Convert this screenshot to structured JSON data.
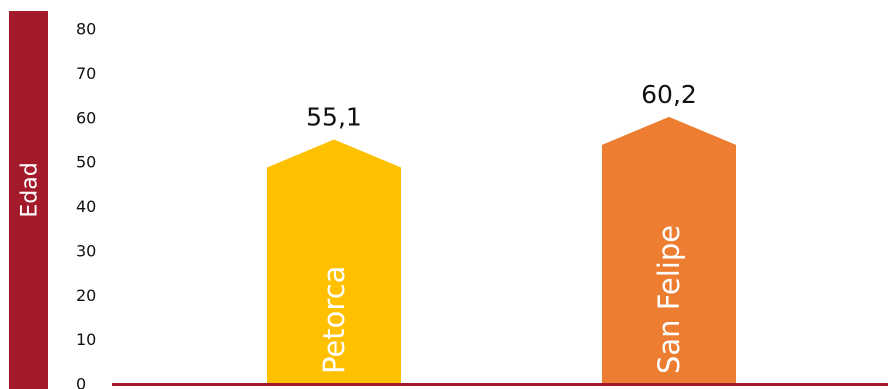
{
  "chart_data": {
    "type": "bar",
    "categories": [
      "Petorca",
      "San Felipe"
    ],
    "values": [
      55.1,
      60.2
    ],
    "value_labels": [
      "55,1",
      "60,2"
    ],
    "ylabel": "Edad",
    "ylim": [
      0,
      80
    ],
    "yticks": [
      "0",
      "10",
      "20",
      "30",
      "40",
      "50",
      "60",
      "70",
      "80"
    ],
    "grid": false,
    "legend": "none",
    "colors": {
      "bars": [
        "#FFC000",
        "#ED7D31"
      ],
      "ylabel_band": "#A31A2A",
      "axis": "#A31A2A"
    }
  }
}
